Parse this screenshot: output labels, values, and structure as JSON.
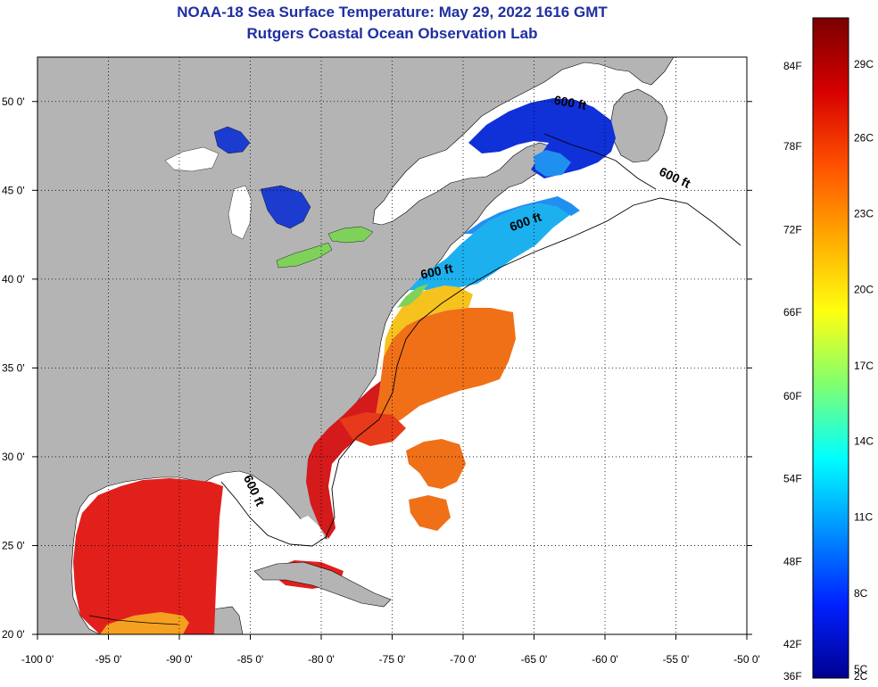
{
  "title": {
    "line1": "NOAA-18 Sea Surface Temperature:  May 29, 2022 1616 GMT",
    "line2": "Rutgers Coastal Ocean Observation Lab"
  },
  "map": {
    "lon_range": [
      -100,
      -50
    ],
    "lat_range": [
      20,
      52.5
    ],
    "lon_ticks": [
      {
        "v": -100,
        "label": "-100 0'"
      },
      {
        "v": -95,
        "label": "-95 0'"
      },
      {
        "v": -90,
        "label": "-90 0'"
      },
      {
        "v": -85,
        "label": "-85 0'"
      },
      {
        "v": -80,
        "label": "-80 0'"
      },
      {
        "v": -75,
        "label": "-75 0'"
      },
      {
        "v": -70,
        "label": "-70 0'"
      },
      {
        "v": -65,
        "label": "-65 0'"
      },
      {
        "v": -60,
        "label": "-60 0'"
      },
      {
        "v": -55,
        "label": "-55 0'"
      },
      {
        "v": -50,
        "label": "-50 0'"
      }
    ],
    "lat_ticks": [
      {
        "v": 20,
        "label": "20 0'"
      },
      {
        "v": 25,
        "label": "25 0'"
      },
      {
        "v": 30,
        "label": "30 0'"
      },
      {
        "v": 35,
        "label": "35 0'"
      },
      {
        "v": 40,
        "label": "40 0'"
      },
      {
        "v": 45,
        "label": "45 0'"
      },
      {
        "v": 50,
        "label": "50 0'"
      }
    ],
    "contour_labels": [
      {
        "text": "600 ft",
        "lon": -62.5,
        "lat": 49.7,
        "rotate": 10
      },
      {
        "text": "600 ft",
        "lon": -55.2,
        "lat": 45.5,
        "rotate": 25
      },
      {
        "text": "600 ft",
        "lon": -65.5,
        "lat": 43.0,
        "rotate": -20
      },
      {
        "text": "600 ft",
        "lon": -71.8,
        "lat": 40.2,
        "rotate": -12
      },
      {
        "text": "600 ft",
        "lon": -85.0,
        "lat": 28.0,
        "rotate": 65
      }
    ],
    "colors": {
      "land": "#b4b4b4",
      "ocean_nodata": "#ffffff",
      "gulf_sst": "#e1201c",
      "gulf_stream": "#d41a1a",
      "midatlantic": "#f07018",
      "slope": "#f6a820",
      "coastal_cool": "#1cb0ee",
      "gulf_maine": "#2090f0",
      "st_lawrence": "#1030d8",
      "great_lakes": "#1c3cd0"
    }
  },
  "colorbar": {
    "f_labels": [
      {
        "label": "84F",
        "frac": 0.0
      },
      {
        "label": "78F",
        "frac": 0.124
      },
      {
        "label": "72F",
        "frac": 0.253
      },
      {
        "label": "66F",
        "frac": 0.381
      },
      {
        "label": "60F",
        "frac": 0.51
      },
      {
        "label": "54F",
        "frac": 0.638
      },
      {
        "label": "48F",
        "frac": 0.766
      },
      {
        "label": "42F",
        "frac": 0.894
      },
      {
        "label": "36F",
        "frac": 1.0
      }
    ],
    "c_labels": [
      {
        "label": "29C",
        "frac": 0.0
      },
      {
        "label": "26C",
        "frac": 0.114
      },
      {
        "label": "23C",
        "frac": 0.231
      },
      {
        "label": "20C",
        "frac": 0.348
      },
      {
        "label": "17C",
        "frac": 0.466
      },
      {
        "label": "14C",
        "frac": 0.583
      },
      {
        "label": "11C",
        "frac": 0.7
      },
      {
        "label": "8C",
        "frac": 0.818
      },
      {
        "label": "5C",
        "frac": 0.935
      },
      {
        "label": "2C",
        "frac": 1.0
      }
    ],
    "gradient": [
      "#7a0000",
      "#d60000",
      "#ff5000",
      "#ffaa00",
      "#ffff10",
      "#80ff70",
      "#00ffff",
      "#0090ff",
      "#0020ff",
      "#000090"
    ]
  }
}
